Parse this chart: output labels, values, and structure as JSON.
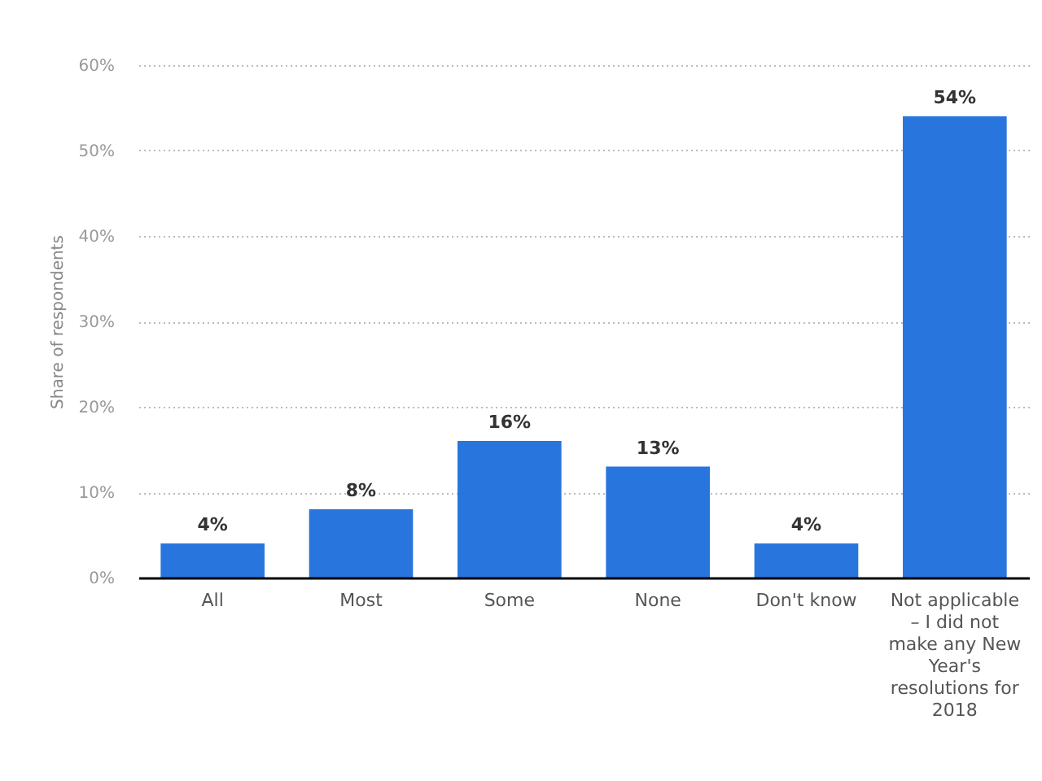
{
  "chart_data": {
    "type": "bar",
    "ylabel": "Share of respondents",
    "categories": [
      "All",
      "Most",
      "Some",
      "None",
      "Don't know",
      "Not applicable – I did not make any New Year's resolutions for 2018"
    ],
    "values": [
      4,
      8,
      16,
      13,
      4,
      54
    ],
    "color": "#2876dd",
    "value_labels": [
      "4%",
      "8%",
      "16%",
      "13%",
      "4%",
      "54%"
    ],
    "ylim": [
      0,
      60
    ],
    "yticks": [
      {
        "value": 0,
        "label": "0%"
      },
      {
        "value": 10,
        "label": "10%"
      },
      {
        "value": 20,
        "label": "20%"
      },
      {
        "value": 30,
        "label": "30%"
      },
      {
        "value": 40,
        "label": "40%"
      },
      {
        "value": 50,
        "label": "50%"
      },
      {
        "value": 60,
        "label": "60%"
      }
    ],
    "grid": "y"
  }
}
